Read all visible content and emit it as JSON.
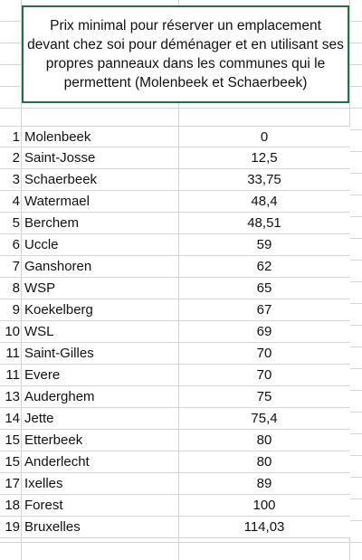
{
  "title": "Prix minimal pour réserver un emplacement devant chez soi pour déménager et en utilisant ses propres panneaux dans les communes qui le permettent (Molenbeek et Schaerbeek)",
  "rows": [
    {
      "rank": "1",
      "commune": "Molenbeek",
      "price": "0"
    },
    {
      "rank": "2",
      "commune": "Saint-Josse",
      "price": "12,5"
    },
    {
      "rank": "3",
      "commune": "Schaerbeek",
      "price": "33,75"
    },
    {
      "rank": "4",
      "commune": "Watermael",
      "price": "48,4"
    },
    {
      "rank": "5",
      "commune": "Berchem",
      "price": "48,51"
    },
    {
      "rank": "6",
      "commune": "Uccle",
      "price": "59"
    },
    {
      "rank": "7",
      "commune": "Ganshoren",
      "price": "62"
    },
    {
      "rank": "8",
      "commune": "WSP",
      "price": "65"
    },
    {
      "rank": "9",
      "commune": "Koekelberg",
      "price": "67"
    },
    {
      "rank": "10",
      "commune": "WSL",
      "price": "69"
    },
    {
      "rank": "11",
      "commune": "Saint-Gilles",
      "price": "70"
    },
    {
      "rank": "11",
      "commune": "Evere",
      "price": "70"
    },
    {
      "rank": "13",
      "commune": "Auderghem",
      "price": "75"
    },
    {
      "rank": "14",
      "commune": "Jette",
      "price": "75,4"
    },
    {
      "rank": "15",
      "commune": "Etterbeek",
      "price": "80"
    },
    {
      "rank": "15",
      "commune": "Anderlecht",
      "price": "80"
    },
    {
      "rank": "17",
      "commune": "Ixelles",
      "price": "89"
    },
    {
      "rank": "18",
      "commune": "Forest",
      "price": "100"
    },
    {
      "rank": "19",
      "commune": "Bruxelles",
      "price": "114,03"
    }
  ]
}
